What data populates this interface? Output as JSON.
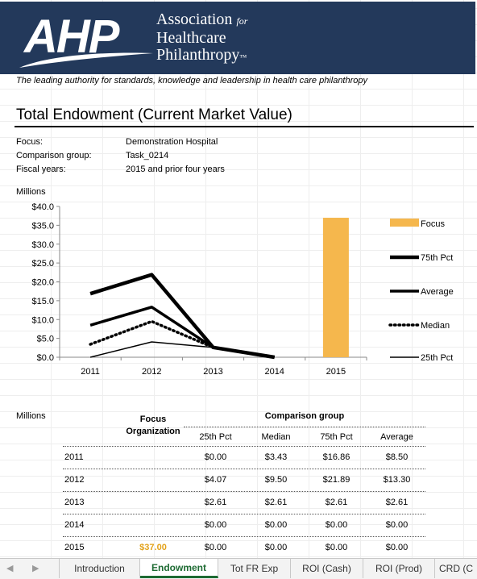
{
  "logo": {
    "letters": "AHP",
    "line1": "Association",
    "line1_for": "for",
    "line2": "Healthcare",
    "line3": "Philanthropy",
    "tm": "™"
  },
  "tagline": "The leading authority for standards, knowledge and leadership in health care philanthropy",
  "title": "Total Endowment (Current Market Value)",
  "meta": {
    "focus_label": "Focus:",
    "focus_value": "Demonstration Hospital",
    "group_label": "Comparison group:",
    "group_value": "Task_0214",
    "years_label": "Fiscal years:",
    "years_value": "2015 and prior four years"
  },
  "chart_units": "Millions",
  "chart_data": {
    "type": "line",
    "categories": [
      "2011",
      "2012",
      "2013",
      "2014",
      "2015"
    ],
    "ylim": [
      0,
      40
    ],
    "yticks": [
      "$0.0",
      "$5.0",
      "$10.0",
      "$15.0",
      "$20.0",
      "$25.0",
      "$30.0",
      "$35.0",
      "$40.0"
    ],
    "grid": false,
    "legend_position": "right",
    "bar_series": {
      "name": "Focus",
      "color": "#f5b74d",
      "values": [
        0,
        0,
        0,
        0,
        37.0
      ]
    },
    "series": [
      {
        "name": "75th Pct",
        "values": [
          16.86,
          21.89,
          2.61,
          0,
          0
        ],
        "style": "thick"
      },
      {
        "name": "Average",
        "values": [
          8.5,
          13.3,
          2.61,
          0,
          0
        ],
        "style": "medium"
      },
      {
        "name": "Median",
        "values": [
          3.43,
          9.5,
          2.61,
          0,
          0
        ],
        "style": "dotted"
      },
      {
        "name": "25th Pct",
        "values": [
          0,
          4.07,
          2.61,
          0,
          0
        ],
        "style": "thin"
      }
    ]
  },
  "table": {
    "units": "Millions",
    "focus_header_1": "Focus",
    "focus_header_2": "Organization",
    "group_header": "Comparison group",
    "col_headers": [
      "25th Pct",
      "Median",
      "75th Pct",
      "Average"
    ],
    "rows": [
      {
        "year": "2011",
        "focus": "",
        "values": [
          "$0.00",
          "$3.43",
          "$16.86",
          "$8.50"
        ]
      },
      {
        "year": "2012",
        "focus": "",
        "values": [
          "$4.07",
          "$9.50",
          "$21.89",
          "$13.30"
        ]
      },
      {
        "year": "2013",
        "focus": "",
        "values": [
          "$2.61",
          "$2.61",
          "$2.61",
          "$2.61"
        ]
      },
      {
        "year": "2014",
        "focus": "",
        "values": [
          "$0.00",
          "$0.00",
          "$0.00",
          "$0.00"
        ]
      },
      {
        "year": "2015",
        "focus": "$37.00",
        "values": [
          "$0.00",
          "$0.00",
          "$0.00",
          "$0.00"
        ]
      }
    ]
  },
  "tabs": [
    {
      "label": "Introduction",
      "active": false
    },
    {
      "label": "Endowment",
      "active": true
    },
    {
      "label": "Tot FR Exp",
      "active": false
    },
    {
      "label": "ROI (Cash)",
      "active": false
    },
    {
      "label": "ROI (Prod)",
      "active": false
    },
    {
      "label": "CRD (C",
      "active": false
    }
  ],
  "nav": {
    "prev": "◀",
    "next": "▶"
  },
  "colors": {
    "banner": "#23395b",
    "focus": "#f5b74d",
    "active_tab": "#1e6b33"
  }
}
